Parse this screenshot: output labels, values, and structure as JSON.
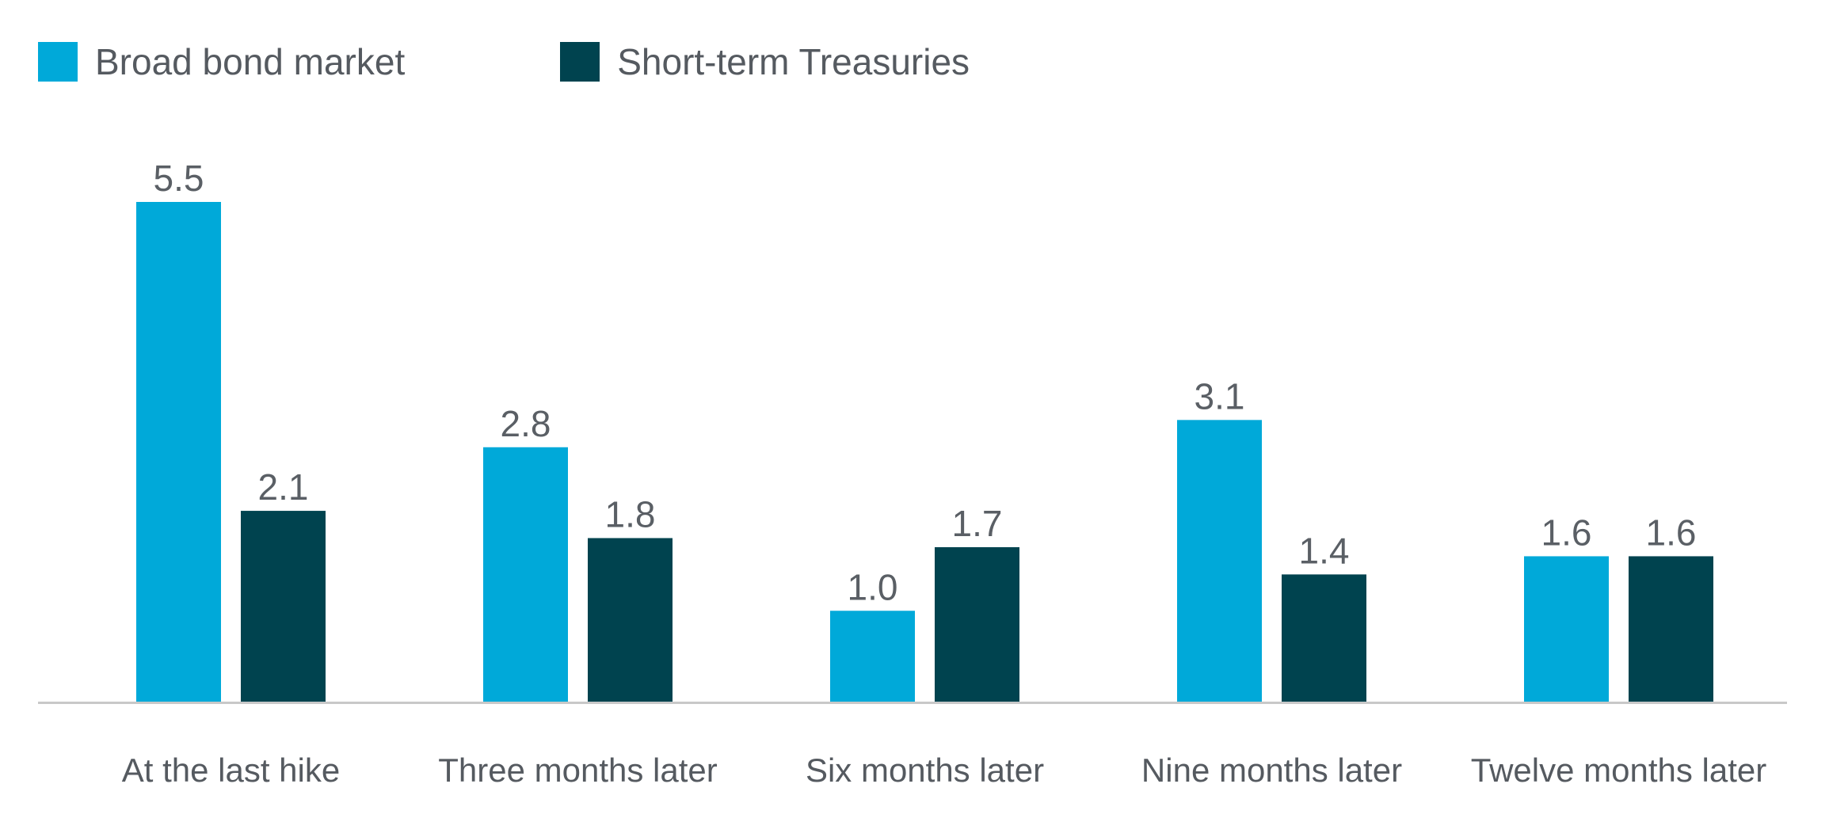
{
  "colors": {
    "broad_bond": "#00a9d9",
    "short_term_treasuries": "#00434f",
    "axis": "#c8c8c8",
    "text": "#555a60"
  },
  "chart_data": {
    "type": "bar",
    "title": "",
    "xlabel": "",
    "ylabel": "",
    "categories": [
      "At the last hike",
      "Three months later",
      "Six months later",
      "Nine months later",
      "Twelve months later"
    ],
    "series": [
      {
        "name": "Broad bond market",
        "values": [
          5.5,
          2.8,
          1.0,
          3.1,
          1.6
        ],
        "labels": [
          "5.5",
          "2.8",
          "1.0",
          "3.1",
          "1.6"
        ]
      },
      {
        "name": "Short-term Treasuries",
        "values": [
          2.1,
          1.8,
          1.7,
          1.4,
          1.6
        ],
        "labels": [
          "2.1",
          "1.8",
          "1.7",
          "1.4",
          "1.6"
        ]
      }
    ],
    "ylim": [
      0,
      5.5
    ],
    "grid": false,
    "legend": "top-left"
  }
}
